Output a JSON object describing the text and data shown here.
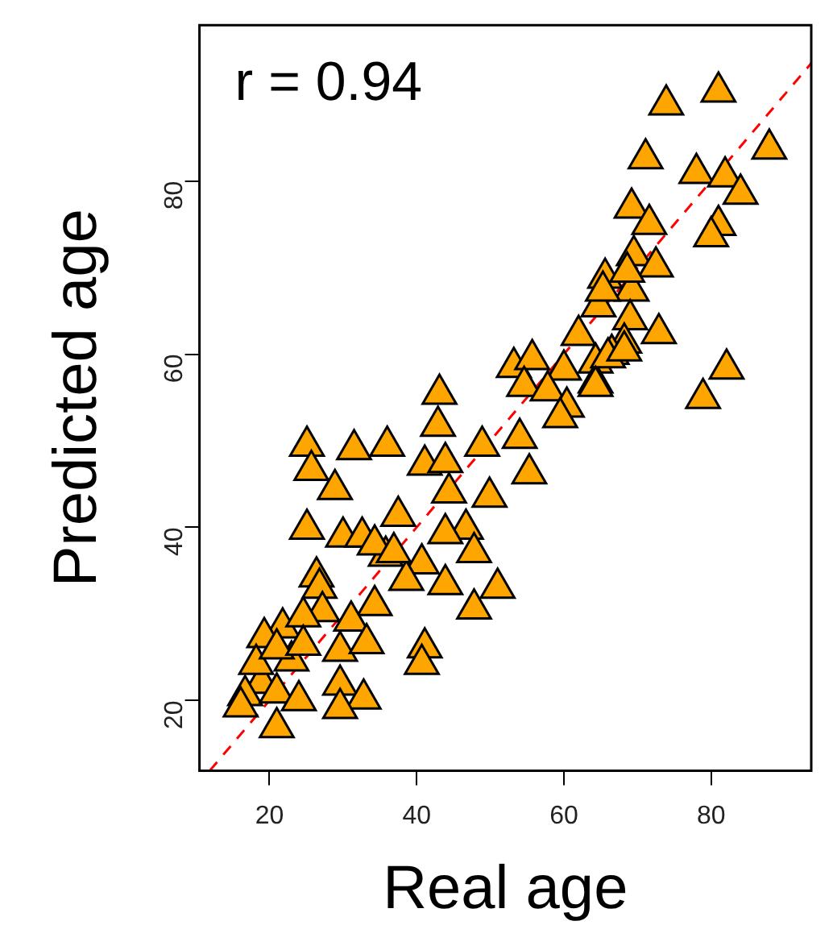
{
  "chart_data": {
    "type": "scatter",
    "xlabel": "Real age",
    "ylabel": "Predicted age",
    "annotations": [
      "r = 0.94"
    ],
    "xlim": [
      10.5,
      93.6
    ],
    "ylim": [
      11.9,
      98
    ],
    "xticks": [
      20,
      40,
      60,
      80
    ],
    "yticks": [
      20,
      40,
      60,
      80
    ],
    "marker": "triangle",
    "series": [
      {
        "type": "scatter",
        "color": "#ffa500",
        "x": [
          73.9,
          81,
          87.9,
          71.1,
          78,
          81.9,
          84,
          81,
          80,
          69.2,
          71.6,
          69.5,
          72.5,
          65.6,
          69.2,
          64.7,
          69,
          72.9,
          62,
          68.2,
          66.5,
          64.3,
          64.3,
          82.1,
          78.9,
          68.6,
          65.3,
          66,
          68.2,
          53.2,
          55.7,
          60,
          54.6,
          57.8,
          60.4,
          64.3,
          59.5,
          43.1,
          42.9,
          48.9,
          54,
          36,
          55.3,
          41.1,
          43.9,
          44.4,
          49.9,
          37.5,
          46.7,
          43.9,
          47.8,
          35.8,
          40.7,
          38.6,
          43.9,
          51,
          47.8,
          41.1,
          25.1,
          31.5,
          25.7,
          28.9,
          25.1,
          30,
          32.6,
          34.3,
          36.9,
          26.4,
          26.8,
          34.3,
          27.2,
          31.1,
          21.8,
          24.6,
          40.7,
          19.3,
          29.6,
          23,
          33.2,
          29.6,
          32.8,
          18.9,
          16.7,
          21,
          24,
          21,
          18.2,
          21,
          24.6,
          29.6,
          16.1
        ],
        "values": [
          88.8,
          90.3,
          83.7,
          82.6,
          80.9,
          80.5,
          78.5,
          74.9,
          73.6,
          76.9,
          75,
          71.4,
          70.1,
          68.8,
          67.3,
          65.5,
          64,
          62.4,
          62.2,
          61.3,
          60,
          59,
          56.7,
          58.3,
          54.9,
          69.5,
          67.3,
          59.6,
          60.4,
          58.5,
          59.4,
          58.2,
          56.3,
          55.8,
          53.9,
          56.3,
          52.7,
          55.4,
          51.7,
          49.4,
          50.3,
          49.4,
          46.2,
          47.2,
          47.5,
          44,
          43.5,
          41.3,
          39.8,
          39.3,
          37.1,
          36.7,
          35.8,
          33.9,
          33.4,
          33,
          30.6,
          26.1,
          49.4,
          49,
          46.6,
          44.4,
          39.8,
          38.9,
          38.9,
          38,
          37.1,
          34.3,
          33,
          31,
          30.3,
          29.2,
          28.4,
          29.7,
          24.2,
          27.3,
          25.7,
          24.6,
          26.6,
          21.8,
          20.2,
          22,
          20.6,
          20.9,
          20,
          16.9,
          24.2,
          26,
          26.4,
          19.1,
          19.3
        ]
      },
      {
        "type": "line",
        "color": "#ff0000",
        "marker": "none",
        "line_style": "dashed",
        "x": [
          11.9,
          93.6
        ],
        "values": [
          11.9,
          93.6
        ]
      }
    ]
  }
}
